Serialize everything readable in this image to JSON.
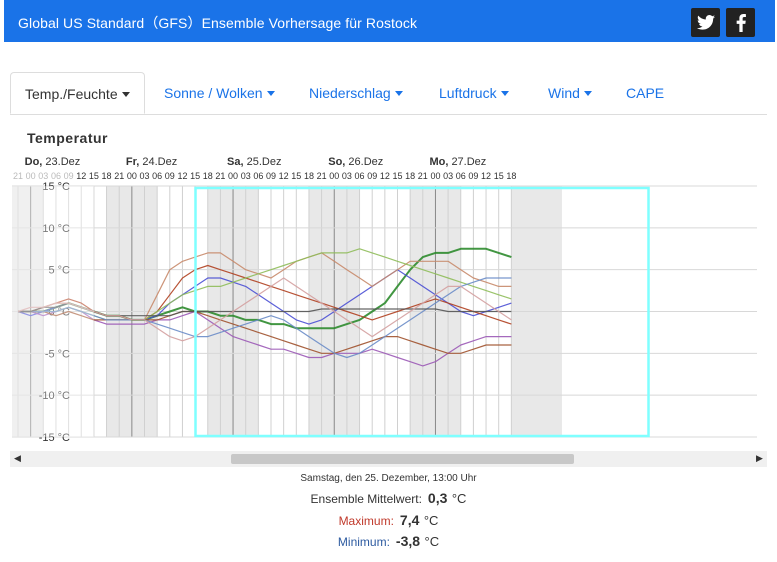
{
  "header": {
    "title": "Global US Standard（GFS）Ensemble Vorhersage für Rostock"
  },
  "social": {
    "twitter": "twitter-icon",
    "facebook": "facebook-icon"
  },
  "tabs": [
    {
      "label": "Temp./Feuchte",
      "active": true,
      "dropdown": true
    },
    {
      "label": "Sonne / Wolken",
      "dropdown": true
    },
    {
      "label": "Niederschlag",
      "dropdown": true
    },
    {
      "label": "Luftdruck",
      "dropdown": true
    },
    {
      "label": "Wind",
      "dropdown": true
    },
    {
      "label": "CAPE",
      "dropdown": false
    }
  ],
  "section_title": "Temperatur",
  "info": {
    "timestamp": "Samstag, den 25. Dezember, 13:00 Uhr",
    "mean_label": "Ensemble Mittelwert:",
    "mean_value": "0,3",
    "mean_unit": "°C",
    "max_label": "Maximum:",
    "max_value": "7,4",
    "max_unit": "°C",
    "min_label": "Minimum:",
    "min_value": "-3,8",
    "min_unit": "°C"
  },
  "colors": {
    "header_bg": "#1a73e8",
    "tab_link": "#1a73e8",
    "max_label": "#c0392b",
    "min_label": "#2c5aa0",
    "selection": "#7fffff",
    "night_band": "#e8e8e8"
  },
  "chart_data": {
    "type": "line",
    "title": "Temperatur",
    "ylim": [
      -15,
      15
    ],
    "y_ticks": [
      "15 °C",
      "10 °C",
      "5 °C",
      "0 °C",
      "-5 °C",
      "-10 °C",
      "-15 °C"
    ],
    "y_tick_values": [
      15,
      10,
      5,
      0,
      -5,
      -10,
      -15
    ],
    "day_labels": [
      {
        "day": "Do,",
        "date": "23.Dez"
      },
      {
        "day": "Fr,",
        "date": "24.Dez"
      },
      {
        "day": "Sa,",
        "date": "25.Dez"
      },
      {
        "day": "So,",
        "date": "26.Dez"
      },
      {
        "day": "Mo,",
        "date": "27.Dez"
      }
    ],
    "hour_labels": [
      "21",
      "00",
      "03",
      "06",
      "09",
      "12",
      "15",
      "18",
      "21",
      "00",
      "03",
      "06",
      "09",
      "12",
      "15",
      "18",
      "21",
      "00",
      "03",
      "06",
      "09",
      "12",
      "15",
      "18",
      "21",
      "00",
      "03",
      "06",
      "09",
      "12",
      "15",
      "18",
      "21",
      "00",
      "03",
      "06",
      "09",
      "12",
      "15",
      "18"
    ],
    "x_start_hour": -3,
    "x_step_hours": 3,
    "grid": true,
    "ensemble_line_count": 31,
    "series": [
      {
        "color": "#2e8b2e",
        "values": [
          0,
          0,
          0,
          0.5,
          1,
          0.5,
          0,
          -0.5,
          -0.5,
          -1,
          -1,
          -0.5,
          0,
          0.5,
          0,
          0,
          -0.5,
          -0.5,
          -1,
          -1,
          -1.5,
          -1.5,
          -2,
          -2,
          -2,
          -2,
          -1.5,
          -1,
          0,
          1,
          3,
          5,
          6.5,
          7,
          7,
          7.5,
          7.5,
          7.5,
          7,
          6.5
        ]
      },
      {
        "color": "#4a4fd4",
        "values": [
          0,
          -0.5,
          0,
          0.5,
          1,
          0.5,
          0,
          -0.5,
          -0.5,
          -1,
          -1,
          -0.5,
          1,
          2,
          3,
          4,
          4,
          3.5,
          3,
          2,
          1,
          0,
          -1,
          -1.5,
          -1,
          0,
          1,
          2,
          3,
          4,
          5,
          4,
          3,
          2,
          1,
          0,
          -0.5,
          0,
          0.5,
          1
        ]
      },
      {
        "color": "#b04020",
        "values": [
          0,
          0,
          0.5,
          1,
          1.5,
          1,
          0,
          -0.5,
          -0.5,
          -1,
          -1,
          0,
          2,
          4,
          5,
          5.5,
          5,
          4.5,
          4,
          3.5,
          3,
          2.5,
          2,
          1.5,
          1,
          0.5,
          0,
          -0.5,
          -1,
          -0.5,
          0,
          0.5,
          1,
          1.5,
          1,
          0.5,
          0,
          -0.5,
          -1,
          -1.5
        ]
      },
      {
        "color": "#9b59b6",
        "values": [
          0,
          0,
          -0.5,
          0,
          0.5,
          0,
          -1,
          -1.5,
          -1.5,
          -1.5,
          -1.5,
          -1,
          -1,
          -0.5,
          0,
          -1,
          -2,
          -3,
          -3.5,
          -4,
          -4.5,
          -4.5,
          -5,
          -5.5,
          -5.5,
          -5,
          -5,
          -5,
          -4.5,
          -5,
          -5.5,
          -6,
          -6.5,
          -6,
          -5,
          -4,
          -3.5,
          -3,
          -3,
          -3
        ]
      },
      {
        "color": "#c88a6a",
        "values": [
          0,
          0,
          0.5,
          1,
          1,
          0.5,
          0,
          -0.5,
          -0.5,
          -1,
          -1,
          2,
          5,
          6,
          6.5,
          7,
          7,
          6,
          5,
          4.5,
          4,
          5,
          6,
          6.5,
          7,
          6,
          5,
          4,
          3,
          4,
          5,
          6,
          6,
          6,
          6,
          5,
          4,
          3.5,
          3,
          3
        ]
      },
      {
        "color": "#8fbc5a",
        "values": [
          0,
          0,
          0,
          0,
          0.5,
          0,
          -0.5,
          -1,
          -1,
          -1,
          -1,
          0,
          1,
          2,
          2.5,
          3,
          3,
          3.5,
          4,
          4.5,
          5,
          5.5,
          6,
          6.5,
          7,
          7,
          7,
          7.5,
          7,
          6.5,
          6,
          5.5,
          5,
          4.5,
          4,
          3.5,
          3,
          2.5,
          2,
          1.5
        ]
      },
      {
        "color": "#a0522d",
        "values": [
          0,
          0,
          0,
          -0.5,
          0,
          -0.5,
          -1,
          -1,
          -1,
          -1,
          -1,
          -1,
          -0.5,
          0,
          0,
          -0.5,
          -1,
          -1.5,
          -2,
          -2.5,
          -3,
          -3.5,
          -4,
          -4.5,
          -5,
          -5,
          -4.5,
          -4,
          -3.5,
          -3,
          -3,
          -3.5,
          -4,
          -4.5,
          -5,
          -5,
          -4.5,
          -4,
          -4,
          -4
        ]
      },
      {
        "color": "#6a8cc8",
        "values": [
          0,
          0,
          0,
          0,
          0.5,
          0,
          -0.5,
          -1,
          -1,
          -1,
          -1,
          -1.5,
          -2,
          -2.5,
          -3,
          -3,
          -2.5,
          -2,
          -1.5,
          -1,
          -0.5,
          -1,
          -2,
          -3,
          -4,
          -5,
          -5.5,
          -5,
          -4,
          -3,
          -2,
          -1,
          0,
          1,
          2,
          3,
          3.5,
          4,
          4,
          4
        ]
      },
      {
        "color": "#555555",
        "values": [
          0,
          0,
          0.5,
          0.5,
          1,
          0.5,
          0,
          -0.5,
          -0.5,
          -0.5,
          -0.5,
          -0.5,
          -0.5,
          0,
          0,
          0,
          0,
          0,
          0,
          0,
          0,
          0,
          0,
          0,
          0.3,
          0.3,
          0.3,
          0.3,
          0.3,
          0.3,
          0.3,
          0.3,
          0.3,
          0.3,
          0,
          0,
          0,
          0,
          0,
          0
        ]
      },
      {
        "color": "#d4a0a0",
        "values": [
          0,
          0.5,
          0.5,
          1,
          1,
          0.5,
          0,
          -0.5,
          -0.5,
          -1,
          -1,
          -2,
          -3,
          -3.5,
          -3,
          -2,
          -1,
          0,
          1,
          2,
          3,
          4,
          3,
          2,
          1,
          0,
          -1,
          -2,
          -3,
          -2,
          -1,
          0,
          1,
          2,
          3,
          3,
          2,
          1,
          0,
          -1
        ]
      }
    ]
  }
}
